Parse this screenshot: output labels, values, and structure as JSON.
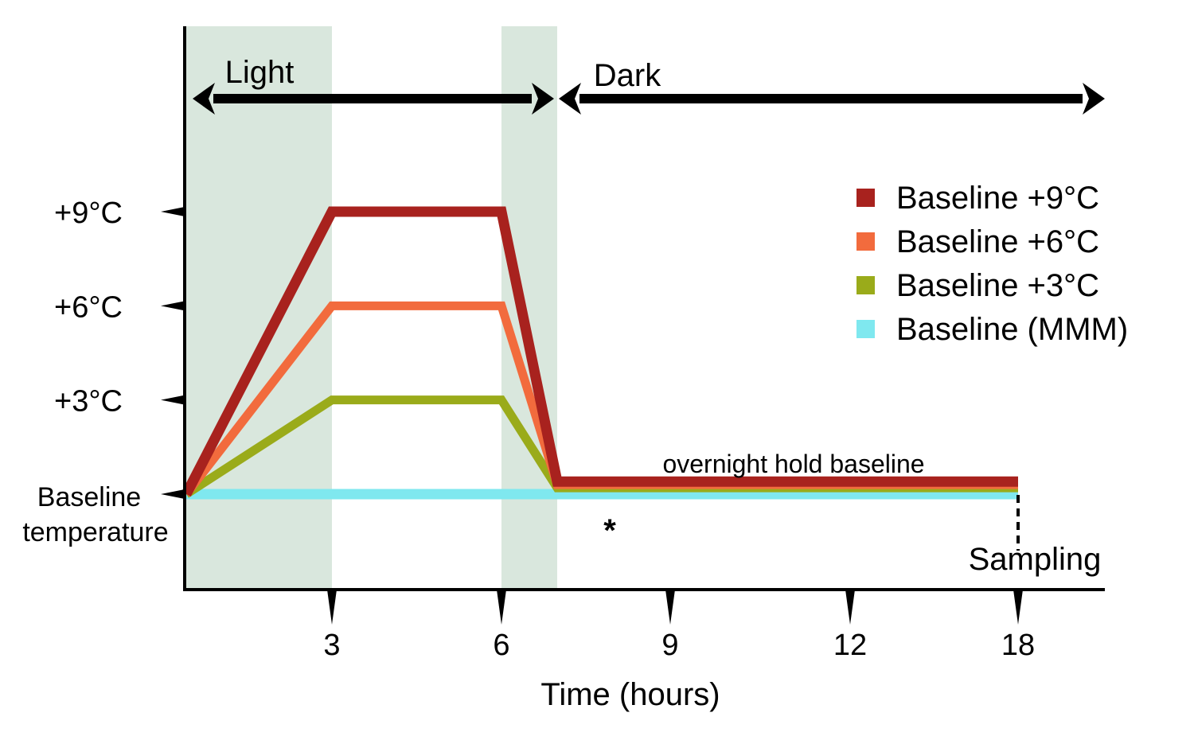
{
  "chart_data": {
    "type": "line",
    "xlabel": "Time (hours)",
    "x_ticks": [
      "3",
      "6",
      "9",
      "12",
      "18"
    ],
    "y_ticks": [
      "+9°C",
      "+6°C",
      "+3°C"
    ],
    "y_baseline_label_line1": "Baseline",
    "y_baseline_label_line2": "temperature",
    "phases": {
      "light_label": "Light",
      "dark_label": "Dark"
    },
    "shaded_bands_hours": [
      [
        0,
        3
      ],
      [
        6,
        7
      ]
    ],
    "series": [
      {
        "name": "Baseline +9°C",
        "color": "#a8221e",
        "x": [
          0,
          3,
          6,
          7,
          18
        ],
        "y": [
          0,
          9,
          9,
          0.4,
          0.4
        ]
      },
      {
        "name": "Baseline +6°C",
        "color": "#f26b3d",
        "x": [
          0,
          3,
          6,
          7,
          18
        ],
        "y": [
          0,
          6,
          6,
          0.3,
          0.3
        ]
      },
      {
        "name": "Baseline +3°C",
        "color": "#9aab1a",
        "x": [
          0,
          3,
          6,
          7,
          18
        ],
        "y": [
          0,
          3,
          3,
          0.2,
          0.2
        ]
      },
      {
        "name": "Baseline (MMM)",
        "color": "#7fe8ef",
        "x": [
          0,
          18
        ],
        "y": [
          0,
          0
        ]
      }
    ],
    "annotations": {
      "overnight": "overnight hold baseline",
      "sampling": "Sampling",
      "star": "*"
    }
  }
}
